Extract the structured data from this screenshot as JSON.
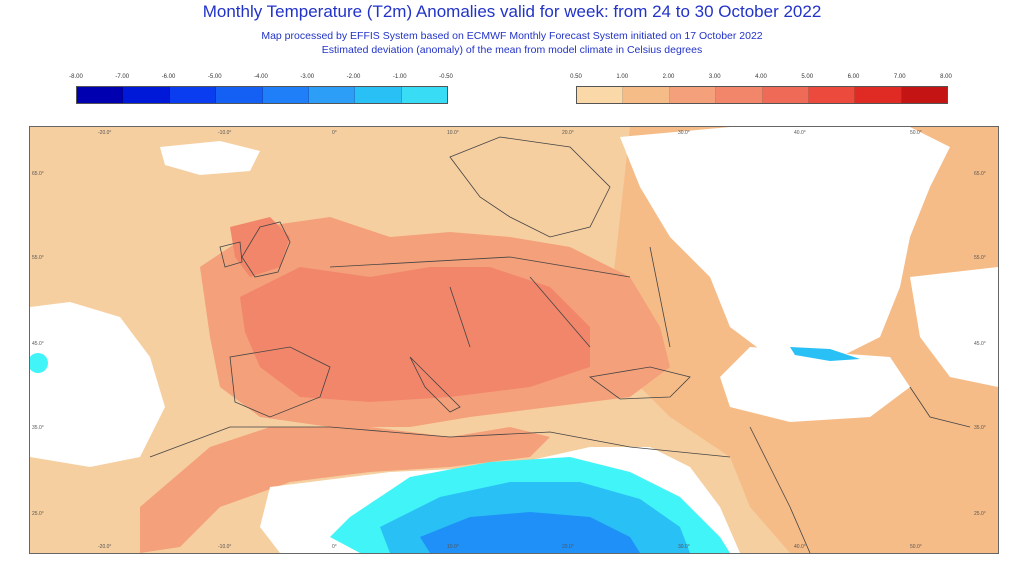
{
  "header": {
    "title": "Monthly Temperature (T2m) Anomalies valid for week: from 24 to 30 October 2022",
    "subtitle_line1": "Map processed by EFFIS System based on ECMWF Monthly Forecast System initiated on 17 October 2022",
    "subtitle_line2": "Estimated deviation (anomaly) of the mean from model climate in Celsius degrees"
  },
  "legend_negative": {
    "ticks": [
      "-8.00",
      "-7.00",
      "-6.00",
      "-5.00",
      "-4.00",
      "-3.00",
      "-2.00",
      "-1.00",
      "-0.50"
    ],
    "colors": [
      "#0000b0",
      "#0018d8",
      "#0a3cf0",
      "#1460f5",
      "#1e7ff8",
      "#2c9ef8",
      "#28c0f5",
      "#38dcf5",
      "#40f4f8"
    ]
  },
  "legend_positive": {
    "ticks": [
      "0.50",
      "1.00",
      "2.00",
      "3.00",
      "4.00",
      "5.00",
      "6.00",
      "7.00",
      "8.00"
    ],
    "colors": [
      "#fad8a8",
      "#f6bc88",
      "#f4a07a",
      "#f2866a",
      "#f06a58",
      "#ec4a3c",
      "#e02a24",
      "#c41414",
      "#980808"
    ]
  },
  "map": {
    "colors": {
      "ocean_warm": "#f6cfa0",
      "warm1": "#f6bc88",
      "warm2": "#f4a07a",
      "warm3": "#f2866a",
      "white": "#ffffff",
      "cold1": "#40f4f8",
      "cold2": "#28c0f5",
      "cold3": "#1e90f8",
      "border": "#444444"
    },
    "top_ticks": [
      "-20.0°",
      "-10.0°",
      "0°",
      "10.0°",
      "20.0°",
      "30.0°",
      "40.0°",
      "50.0°"
    ],
    "bottom_ticks": [
      "-20.0°",
      "-10.0°",
      "0°",
      "10.0°",
      "20.0°",
      "30.0°",
      "40.0°",
      "50.0°"
    ],
    "left_ticks": [
      "65.0°",
      "55.0°",
      "45.0°",
      "35.0°",
      "25.0°"
    ],
    "right_ticks": [
      "65.0°",
      "55.0°",
      "45.0°",
      "35.0°",
      "25.0°"
    ]
  }
}
